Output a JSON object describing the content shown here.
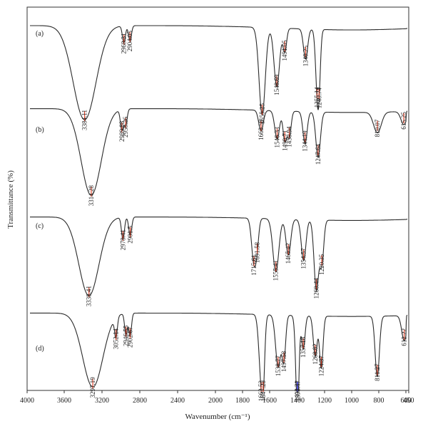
{
  "chart_data": {
    "type": "line",
    "title": "",
    "xlabel": "Wavenumber (cm⁻¹)",
    "ylabel": "Transmittance (%)",
    "x_reversed": true,
    "xlim": [
      4000,
      450
    ],
    "x_ticks": [
      4000,
      3600,
      3200,
      2800,
      2400,
      2000,
      1800,
      1600,
      1400,
      1200,
      1000,
      800,
      600,
      450
    ],
    "legend": "none",
    "grid": false,
    "series": [
      {
        "name": "(a)",
        "baseline": 0.96,
        "bands": [
          {
            "x": 3384.11,
            "d": 0.88,
            "w": 170,
            "label": "3384.11",
            "color": "#e0452b"
          },
          {
            "x": 2968.31,
            "d": 0.16,
            "w": 22,
            "label": "2968.31",
            "color": "#e0452b"
          },
          {
            "x": 2904.05,
            "d": 0.14,
            "w": 22,
            "label": "2904.05",
            "color": "#e0452b"
          },
          {
            "x": 1655.25,
            "d": 0.82,
            "w": 32,
            "label": "1655.25",
            "color": "#e0452b"
          },
          {
            "x": 1548.69,
            "d": 0.55,
            "w": 28,
            "label": "1548.69",
            "color": "#e0452b"
          },
          {
            "x": 1491.05,
            "d": 0.22,
            "w": 18,
            "label": "1491.05",
            "color": "#e0452b"
          },
          {
            "x": 1340.25,
            "d": 0.28,
            "w": 22,
            "label": "1340.25",
            "color": "#e0452b"
          },
          {
            "x": 1255.14,
            "d": 0.48,
            "w": 18,
            "label": "1255.14",
            "color": "#e0452b"
          },
          {
            "x": 1240.74,
            "d": 0.42,
            "w": 16,
            "label": "1240.74",
            "color": "#e0452b"
          }
        ]
      },
      {
        "name": "(b)",
        "baseline": 0.92,
        "bands": [
          {
            "x": 3314.28,
            "d": 0.92,
            "w": 150,
            "label": "3314.28",
            "color": "#e0452b"
          },
          {
            "x": 2989.88,
            "d": 0.22,
            "w": 22,
            "label": "2989.88",
            "color": "#e0452b"
          },
          {
            "x": 2950.36,
            "d": 0.18,
            "w": 22,
            "label": "2950.36",
            "color": "#e0452b"
          },
          {
            "x": 1663.58,
            "d": 0.22,
            "w": 24,
            "label": "1663.58",
            "color": "#e0452b"
          },
          {
            "x": 1546.33,
            "d": 0.3,
            "w": 24,
            "label": "1546.33",
            "color": "#e0452b"
          },
          {
            "x": 1490.71,
            "d": 0.32,
            "w": 18,
            "label": "1490.71",
            "color": "#e0452b"
          },
          {
            "x": 1458.94,
            "d": 0.28,
            "w": 18,
            "label": "1458.94",
            "color": "#e0452b"
          },
          {
            "x": 1344.19,
            "d": 0.34,
            "w": 22,
            "label": "1344.19",
            "color": "#e0452b"
          },
          {
            "x": 1247.64,
            "d": 0.48,
            "w": 24,
            "label": "1247.64",
            "color": "#e0452b"
          },
          {
            "x": 810.07,
            "d": 0.22,
            "w": 40,
            "label": "810.07",
            "color": "#e0452b"
          },
          {
            "x": 615.25,
            "d": 0.14,
            "w": 30,
            "label": "615.25",
            "color": "#e0452b"
          }
        ]
      },
      {
        "name": "(c)",
        "baseline": 0.92,
        "bands": [
          {
            "x": 3338.41,
            "d": 0.92,
            "w": 150,
            "label": "3338.41",
            "color": "#e0452b"
          },
          {
            "x": 2978.41,
            "d": 0.26,
            "w": 22,
            "label": "2978.41",
            "color": "#e0452b"
          },
          {
            "x": 2901.5,
            "d": 0.22,
            "w": 22,
            "label": "2901.5",
            "color": "#e0452b"
          },
          {
            "x": 1715.61,
            "d": 0.52,
            "w": 24,
            "label": "1715.61",
            "color": "#e0452b"
          },
          {
            "x": 1691.58,
            "d": 0.22,
            "w": 18,
            "label": "1691.58",
            "color": "#e0452b"
          },
          {
            "x": 1555.41,
            "d": 0.62,
            "w": 30,
            "label": "1555.41",
            "color": "#e0452b"
          },
          {
            "x": 1465.42,
            "d": 0.42,
            "w": 24,
            "label": "1465.42",
            "color": "#e0452b"
          },
          {
            "x": 1354.57,
            "d": 0.48,
            "w": 24,
            "label": "1354.57",
            "color": "#e0452b"
          },
          {
            "x": 1260.44,
            "d": 0.82,
            "w": 24,
            "label": "1260.44",
            "color": "#e0452b"
          },
          {
            "x": 1220.35,
            "d": 0.5,
            "w": 20,
            "label": "1220.35",
            "color": "#e0452b"
          }
        ]
      },
      {
        "name": "(d)",
        "baseline": 0.92,
        "bands": [
          {
            "x": 3297.19,
            "d": 0.88,
            "w": 150,
            "label": "3297.19",
            "color": "#e0452b"
          },
          {
            "x": 3052.14,
            "d": 0.24,
            "w": 20,
            "label": "3052.14",
            "color": "#e0452b"
          },
          {
            "x": 2946.55,
            "d": 0.26,
            "w": 20,
            "label": "2946.55",
            "color": "#e0452b"
          },
          {
            "x": 2902.67,
            "d": 0.28,
            "w": 20,
            "label": "2902.67",
            "color": "#e0452b"
          },
          {
            "x": 1662.53,
            "d": 0.72,
            "w": 24,
            "label": "1662.53",
            "color": "#e0452b"
          },
          {
            "x": 1647.25,
            "d": 0.5,
            "w": 16,
            "label": "1647.25",
            "color": "#e0452b"
          },
          {
            "x": 1538.77,
            "d": 0.62,
            "w": 26,
            "label": "1538.77",
            "color": "#e0452b"
          },
          {
            "x": 1497.58,
            "d": 0.52,
            "w": 18,
            "label": "1497.58",
            "color": "#e0452b"
          },
          {
            "x": 1402.31,
            "d": 0.62,
            "w": 18,
            "label": "1402.31",
            "color": "#4a4ad8"
          },
          {
            "x": 1398.47,
            "d": 0.58,
            "w": 14,
            "label": "1398.47",
            "color": "#4a4ad8"
          },
          {
            "x": 1357.18,
            "d": 0.4,
            "w": 18,
            "label": "1357.18",
            "color": "#e0452b"
          },
          {
            "x": 1268.82,
            "d": 0.48,
            "w": 20,
            "label": "1268.82",
            "color": "#e0452b"
          },
          {
            "x": 1224.37,
            "d": 0.62,
            "w": 18,
            "label": "1224.37",
            "color": "#e0452b"
          },
          {
            "x": 811.27,
            "d": 0.72,
            "w": 22,
            "label": "811.27",
            "color": "#e0452b"
          },
          {
            "x": 612.22,
            "d": 0.3,
            "w": 26,
            "label": "612.22",
            "color": "#e0452b"
          }
        ]
      }
    ]
  }
}
